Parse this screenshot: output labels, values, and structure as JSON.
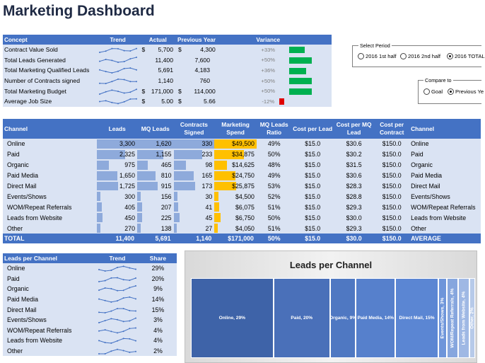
{
  "title": "Marketing Dashboard",
  "kpi": {
    "headers": {
      "concept": "Concept",
      "trend": "Trend",
      "actual": "Actual",
      "previous": "Previous Year",
      "variance": "Variance"
    },
    "rows": [
      {
        "concept": "Contract Value Sold",
        "actual_cur": "$",
        "actual": "5,700",
        "prev_cur": "$",
        "previous": "4,300",
        "variance": "+33%",
        "var_fill": 0.55,
        "var_color": "#00b050"
      },
      {
        "concept": "Total Leads Generated",
        "actual_cur": "",
        "actual": "11,400",
        "prev_cur": "",
        "previous": "7,600",
        "variance": "+50%",
        "var_fill": 0.8,
        "var_color": "#00b050"
      },
      {
        "concept": "Total Marketing Qualified Leads",
        "actual_cur": "",
        "actual": "5,691",
        "prev_cur": "",
        "previous": "4,183",
        "variance": "+36%",
        "var_fill": 0.6,
        "var_color": "#00b050"
      },
      {
        "concept": "Number of Contracts signed",
        "actual_cur": "",
        "actual": "1,140",
        "prev_cur": "",
        "previous": "760",
        "variance": "+50%",
        "var_fill": 0.8,
        "var_color": "#00b050"
      },
      {
        "concept": "Total Marketing Budget",
        "actual_cur": "$",
        "actual": "171,000",
        "prev_cur": "$",
        "previous": "114,000",
        "variance": "+50%",
        "var_fill": 0.8,
        "var_color": "#00b050"
      },
      {
        "concept": "Average Job Size",
        "actual_cur": "$",
        "actual": "5.00",
        "prev_cur": "$",
        "previous": "5.66",
        "variance": "-12%",
        "var_fill": 0.18,
        "var_color": "#e00000"
      }
    ]
  },
  "select_period": {
    "legend": "Select Period",
    "options": [
      {
        "label": "2016 1st half",
        "selected": false
      },
      {
        "label": "2016 2nd half",
        "selected": false
      },
      {
        "label": "2016 TOTAL",
        "selected": true
      }
    ]
  },
  "compare_to": {
    "legend": "Compare to",
    "options": [
      {
        "label": "Goal",
        "selected": false
      },
      {
        "label": "Previous Ye",
        "selected": true
      }
    ]
  },
  "channels": {
    "headers": {
      "channel": "Channel",
      "leads": "Leads",
      "mq": "MQ Leads",
      "contracts": "Contracts Signed",
      "spend": "Marketing Spend",
      "ratio": "MQ Leads Ratio",
      "cpl": "Cost per Lead",
      "cpmq": "Cost per MQ Lead",
      "cpc": "Cost per Contract",
      "channel2": "Channel"
    },
    "rows": [
      {
        "channel": "Online",
        "leads": "3,300",
        "leads_f": 1.0,
        "mq": "1,620",
        "mq_f": 1.0,
        "contracts": "330",
        "con_f": 1.0,
        "spend": "$49,500",
        "spend_f": 1.0,
        "ratio": "49%",
        "cpl": "$15.0",
        "cpmq": "$30.6",
        "cpc": "$150.0"
      },
      {
        "channel": "Paid",
        "leads": "2,325",
        "leads_f": 0.7,
        "mq": "1,155",
        "mq_f": 0.71,
        "contracts": "233",
        "con_f": 0.7,
        "spend": "$34,875",
        "spend_f": 0.7,
        "ratio": "50%",
        "cpl": "$15.0",
        "cpmq": "$30.2",
        "cpc": "$150.0"
      },
      {
        "channel": "Organic",
        "leads": "975",
        "leads_f": 0.3,
        "mq": "465",
        "mq_f": 0.29,
        "contracts": "98",
        "con_f": 0.3,
        "spend": "$14,625",
        "spend_f": 0.3,
        "ratio": "48%",
        "cpl": "$15.0",
        "cpmq": "$31.5",
        "cpc": "$150.0"
      },
      {
        "channel": "Paid Media",
        "leads": "1,650",
        "leads_f": 0.5,
        "mq": "810",
        "mq_f": 0.5,
        "contracts": "165",
        "con_f": 0.5,
        "spend": "$24,750",
        "spend_f": 0.5,
        "ratio": "49%",
        "cpl": "$15.0",
        "cpmq": "$30.6",
        "cpc": "$150.0"
      },
      {
        "channel": "Direct Mail",
        "leads": "1,725",
        "leads_f": 0.52,
        "mq": "915",
        "mq_f": 0.56,
        "contracts": "173",
        "con_f": 0.52,
        "spend": "$25,875",
        "spend_f": 0.52,
        "ratio": "53%",
        "cpl": "$15.0",
        "cpmq": "$28.3",
        "cpc": "$150.0"
      },
      {
        "channel": "Events/Shows",
        "leads": "300",
        "leads_f": 0.09,
        "mq": "156",
        "mq_f": 0.1,
        "contracts": "30",
        "con_f": 0.09,
        "spend": "$4,500",
        "spend_f": 0.09,
        "ratio": "52%",
        "cpl": "$15.0",
        "cpmq": "$28.8",
        "cpc": "$150.0"
      },
      {
        "channel": "WOM/Repeat Referrals",
        "leads": "405",
        "leads_f": 0.12,
        "mq": "207",
        "mq_f": 0.13,
        "contracts": "41",
        "con_f": 0.12,
        "spend": "$6,075",
        "spend_f": 0.12,
        "ratio": "51%",
        "cpl": "$15.0",
        "cpmq": "$29.3",
        "cpc": "$150.0"
      },
      {
        "channel": "Leads from Website",
        "leads": "450",
        "leads_f": 0.14,
        "mq": "225",
        "mq_f": 0.14,
        "contracts": "45",
        "con_f": 0.14,
        "spend": "$6,750",
        "spend_f": 0.14,
        "ratio": "50%",
        "cpl": "$15.0",
        "cpmq": "$30.0",
        "cpc": "$150.0"
      },
      {
        "channel": "Other",
        "leads": "270",
        "leads_f": 0.08,
        "mq": "138",
        "mq_f": 0.09,
        "contracts": "27",
        "con_f": 0.08,
        "spend": "$4,050",
        "spend_f": 0.08,
        "ratio": "51%",
        "cpl": "$15.0",
        "cpmq": "$29.3",
        "cpc": "$150.0"
      }
    ],
    "total": {
      "label": "TOTAL",
      "leads": "11,400",
      "mq": "5,691",
      "contracts": "1,140",
      "spend": "$171,000",
      "ratio": "50%",
      "cpl": "$15.0",
      "cpmq": "$30.0",
      "cpc": "$150.0",
      "channel2": "AVERAGE"
    }
  },
  "leads_per_channel": {
    "headers": {
      "channel": "Leads per Channel",
      "trend": "Trend",
      "share": "Share"
    },
    "rows": [
      {
        "channel": "Online",
        "share": "29%"
      },
      {
        "channel": "Paid",
        "share": "20%"
      },
      {
        "channel": "Organic",
        "share": "9%"
      },
      {
        "channel": "Paid Media",
        "share": "14%"
      },
      {
        "channel": "Direct Mail",
        "share": "15%"
      },
      {
        "channel": "Events/Shows",
        "share": "3%"
      },
      {
        "channel": "WOM/Repeat Referrals",
        "share": "4%"
      },
      {
        "channel": "Leads from Website",
        "share": "4%"
      },
      {
        "channel": "Other",
        "share": "2%"
      }
    ]
  },
  "chart_data": {
    "type": "treemap",
    "title": "Leads per Channel",
    "categories": [
      "Online",
      "Paid",
      "Organic",
      "Paid Media",
      "Direct Mail",
      "Events/Shows",
      "WOM/Repeat Referrals",
      "Leads from Website",
      "Other"
    ],
    "values": [
      29,
      20,
      9,
      14,
      15,
      3,
      4,
      4,
      2
    ],
    "labels": [
      "Online, 29%",
      "Paid, 20%",
      "Organic, 9%",
      "Paid Media, 14%",
      "Direct Mail, 15%",
      "Events/Shows, 3%",
      "WOM/Repeat Referrals, 4%",
      "Leads from Website, 4%",
      "Other, 2%"
    ],
    "colors": [
      "#3e63a8",
      "#4a70b9",
      "#4f78c2",
      "#5680cc",
      "#5b86d3",
      "#6e95da",
      "#86a6de",
      "#9fb8e4",
      "#b7cae9"
    ]
  }
}
